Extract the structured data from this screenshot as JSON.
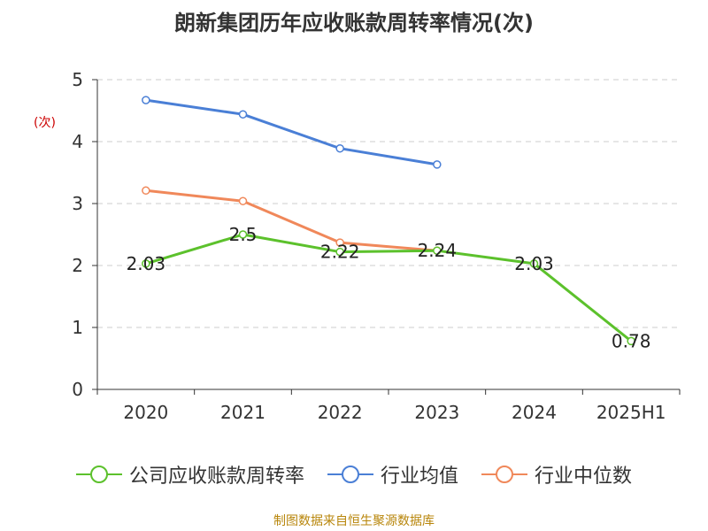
{
  "chart_data": {
    "type": "line",
    "title": "朗新集团历年应收账款周转率情况(次)",
    "ylabel": "(次)",
    "xlabel": "",
    "categories": [
      "2020",
      "2021",
      "2022",
      "2023",
      "2024",
      "2025H1"
    ],
    "ylim": [
      0,
      5
    ],
    "yticks": [
      0,
      1,
      2,
      3,
      4,
      5
    ],
    "grid": true,
    "legend_position": "bottom",
    "series": [
      {
        "name": "公司应收账款周转率",
        "color": "#5cc12c",
        "values": [
          2.03,
          2.5,
          2.22,
          2.24,
          2.03,
          0.78
        ],
        "labels": [
          "2.03",
          "2.5",
          "2.22",
          "2.24",
          "2.03",
          "0.78"
        ]
      },
      {
        "name": "行业均值",
        "color": "#4a7fd6",
        "values": [
          4.67,
          4.44,
          3.89,
          3.63,
          null,
          null
        ]
      },
      {
        "name": "行业中位数",
        "color": "#f0885a",
        "values": [
          3.21,
          3.04,
          2.37,
          2.24,
          null,
          null
        ]
      }
    ]
  },
  "footer": {
    "source": "制图数据来自恒生聚源数据库"
  }
}
